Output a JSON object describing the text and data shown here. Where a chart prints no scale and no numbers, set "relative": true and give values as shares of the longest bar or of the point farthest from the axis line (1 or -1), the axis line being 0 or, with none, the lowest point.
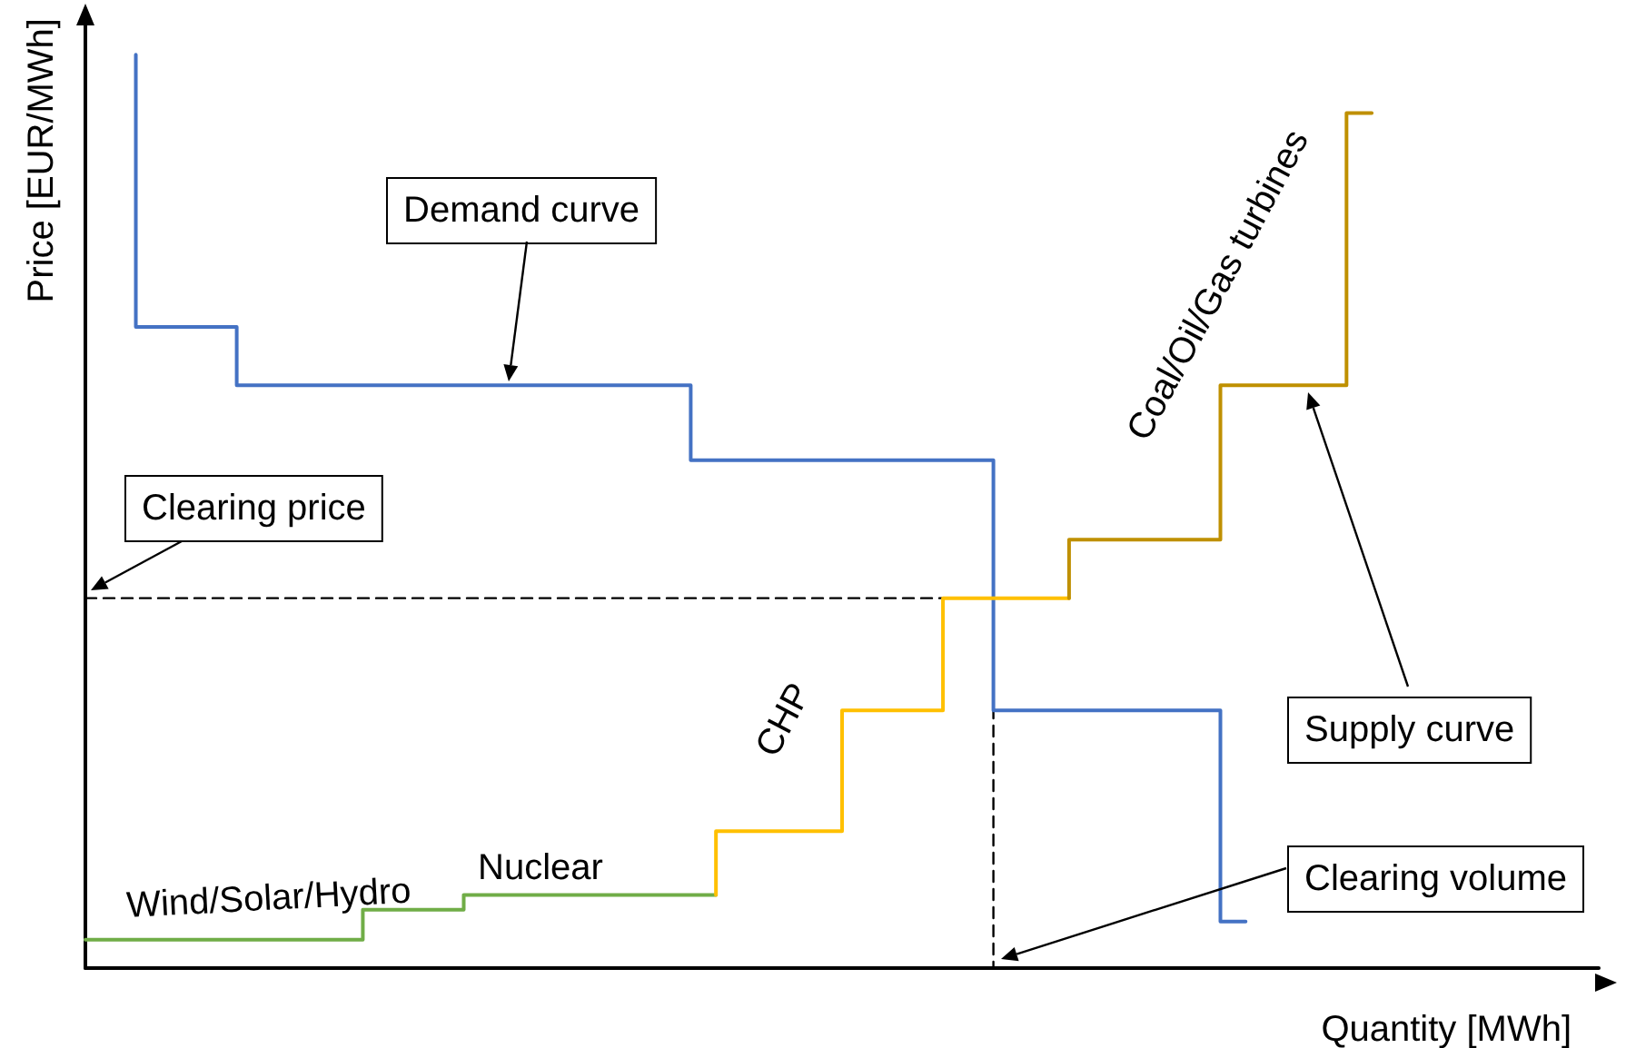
{
  "chart_data": {
    "type": "step",
    "relative": true,
    "xlabel": "Quantity [MWh]",
    "ylabel": "Price [EUR/MWh]",
    "categories": [
      null,
      null,
      null,
      null,
      null,
      null,
      null,
      null,
      null,
      null,
      null,
      null,
      null,
      null,
      null,
      null,
      null,
      null,
      null,
      null,
      null,
      null,
      null,
      null,
      null,
      null,
      null,
      null,
      null,
      null,
      null,
      null,
      null,
      null,
      null,
      null,
      null,
      null,
      null,
      null,
      null,
      null,
      null,
      null,
      null,
      null,
      null,
      null,
      null,
      null,
      null,
      null,
      null,
      null,
      null,
      null,
      null,
      null,
      null,
      null,
      null
    ],
    "series": [
      {
        "color": "#4472c4",
        "values": [
          null,
          null,
          1.0,
          null,
          null,
          null,
          0.702,
          null,
          null,
          null,
          null,
          null,
          null,
          null,
          null,
          null,
          null,
          null,
          null,
          null,
          null,
          null,
          null,
          null,
          0.638,
          null,
          null,
          null,
          null,
          null,
          null,
          null,
          null,
          null,
          null,
          null,
          0.556,
          null,
          null,
          null,
          null,
          null,
          null,
          null,
          null,
          0.282,
          0.051,
          null,
          null,
          null,
          null,
          null,
          null,
          null,
          null,
          null,
          null,
          null,
          null,
          null,
          null
        ]
      },
      {
        "color": "#70ad47",
        "values": [
          0.031,
          null,
          null,
          null,
          null,
          null,
          null,
          null,
          null,
          null,
          null,
          0.031,
          null,
          null,
          null,
          0.064,
          null,
          null,
          null,
          null,
          null,
          null,
          null,
          null,
          null,
          0.08,
          null,
          null,
          null,
          null,
          null,
          null,
          null,
          null,
          null,
          null,
          null,
          null,
          null,
          null,
          null,
          null,
          null,
          null,
          null,
          null,
          null,
          null,
          null,
          null,
          null,
          null,
          null,
          null,
          null,
          null,
          null,
          null,
          null,
          null,
          null
        ]
      },
      {
        "color": "#ffc000",
        "values": [
          null,
          null,
          null,
          null,
          null,
          null,
          null,
          null,
          null,
          null,
          null,
          null,
          null,
          null,
          null,
          null,
          null,
          null,
          null,
          null,
          null,
          null,
          null,
          null,
          null,
          0.08,
          null,
          null,
          null,
          null,
          0.15,
          null,
          null,
          null,
          0.282,
          null,
          null,
          null,
          null,
          0.405,
          null,
          null,
          null,
          null,
          null,
          null,
          null,
          null,
          null,
          null,
          null,
          null,
          null,
          null,
          null,
          null,
          null,
          null,
          null,
          null,
          null
        ]
      },
      {
        "color": "#bf9000",
        "values": [
          null,
          null,
          null,
          null,
          null,
          null,
          null,
          null,
          null,
          null,
          null,
          null,
          null,
          null,
          null,
          null,
          null,
          null,
          null,
          null,
          null,
          null,
          null,
          null,
          null,
          null,
          null,
          null,
          null,
          null,
          null,
          null,
          null,
          null,
          null,
          null,
          null,
          null,
          null,
          0.405,
          null,
          null,
          null,
          null,
          null,
          0.469,
          null,
          null,
          null,
          null,
          0.638,
          0.936,
          null,
          null,
          null,
          null,
          null,
          null,
          null,
          null,
          null
        ]
      },
      {
        "color": "#000000",
        "line_style": "dashed",
        "values": [
          0.405,
          null,
          null,
          null,
          null,
          null,
          null,
          null,
          null,
          null,
          null,
          null,
          null,
          null,
          null,
          null,
          null,
          null,
          null,
          null,
          null,
          null,
          null,
          null,
          null,
          null,
          null,
          null,
          null,
          null,
          null,
          null,
          null,
          null,
          null,
          null,
          0.405,
          0,
          null,
          null,
          null,
          null,
          null,
          null,
          null,
          null,
          null,
          null,
          null,
          null,
          null,
          null,
          null,
          null,
          null,
          null,
          null,
          null,
          null,
          null,
          null
        ]
      }
    ],
    "annotations": [
      "Demand curve",
      "Clearing price",
      "CHP",
      "Coal/Oil/Gas turbines",
      "Supply curve",
      "Wind/Solar/Hydro",
      "Nuclear",
      "Clearing volume"
    ]
  }
}
